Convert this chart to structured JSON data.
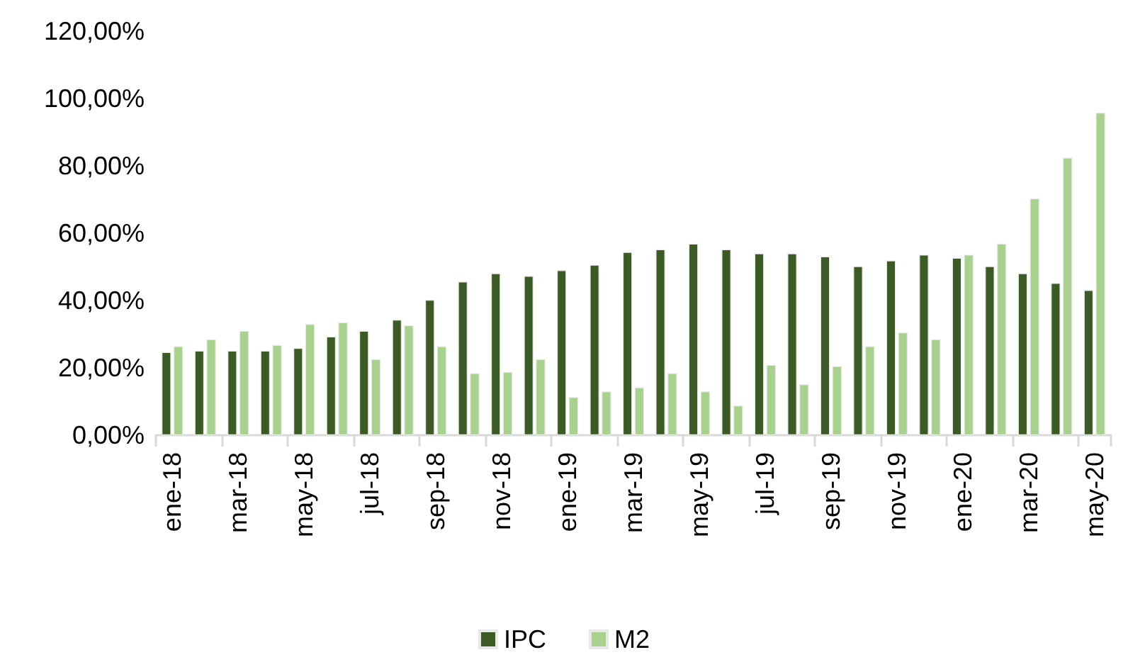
{
  "chart_data": {
    "type": "bar",
    "categories": [
      "ene-18",
      null,
      "mar-18",
      null,
      "may-18",
      null,
      "jul-18",
      null,
      "sep-18",
      null,
      "nov-18",
      null,
      "ene-19",
      null,
      "mar-19",
      null,
      "may-19",
      null,
      "jul-19",
      null,
      "sep-19",
      null,
      "nov-19",
      null,
      "ene-20",
      null,
      "mar-20",
      null,
      "may-20"
    ],
    "series": [
      {
        "name": "IPC",
        "color": "#3c5a24",
        "values": [
          24.7,
          25.1,
          25.1,
          25.1,
          25.9,
          29.3,
          31,
          34.3,
          40.2,
          45.6,
          48.1,
          47.3,
          49,
          50.6,
          54.4,
          55.2,
          56.9,
          55.2,
          54,
          54,
          53.1,
          50.2,
          51.9,
          53.6,
          52.7,
          50.2,
          48.1,
          45.2,
          43.1
        ]
      },
      {
        "name": "M2",
        "color": "#a9d18e",
        "values": [
          26.4,
          28.5,
          31,
          26.8,
          33,
          33.5,
          22.6,
          32.6,
          26.4,
          18.4,
          18.8,
          22.6,
          11.3,
          13,
          14.2,
          18.4,
          13,
          8.8,
          20.9,
          15.1,
          20.5,
          26.4,
          30.5,
          28.5,
          53.6,
          56.9,
          70.3,
          82.4,
          95.8
        ]
      }
    ],
    "ylim": [
      0,
      120
    ],
    "yticks": [
      {
        "value": 0,
        "label": "0,00%"
      },
      {
        "value": 20,
        "label": "20,00%"
      },
      {
        "value": 40,
        "label": "40,00%"
      },
      {
        "value": 60,
        "label": "60,00%"
      },
      {
        "value": 80,
        "label": "80,00%"
      },
      {
        "value": 100,
        "label": "100,00%"
      },
      {
        "value": 120,
        "label": "120,00%"
      }
    ],
    "grid": false,
    "legend": "bottom"
  }
}
